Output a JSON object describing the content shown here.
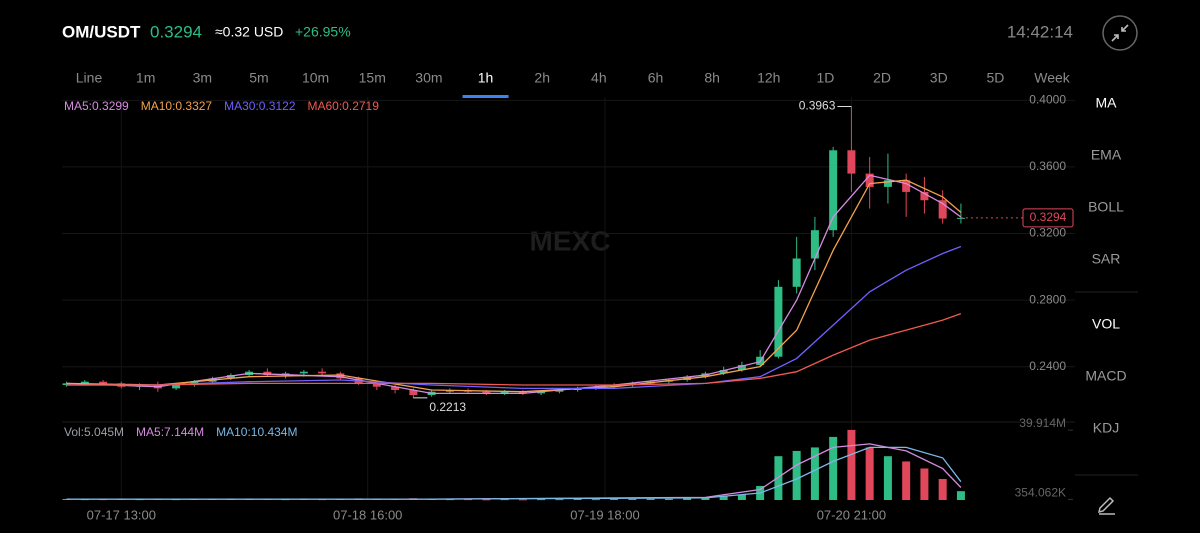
{
  "header": {
    "pair": "OM/USDT",
    "price": "0.3294",
    "usd": "≈0.32 USD",
    "change": "+26.95%",
    "time": "14:42:14"
  },
  "tabs": [
    {
      "label": "Line"
    },
    {
      "label": "1m"
    },
    {
      "label": "3m"
    },
    {
      "label": "5m"
    },
    {
      "label": "10m"
    },
    {
      "label": "15m"
    },
    {
      "label": "30m"
    },
    {
      "label": "1h",
      "selected": true
    },
    {
      "label": "2h"
    },
    {
      "label": "4h"
    },
    {
      "label": "6h"
    },
    {
      "label": "8h"
    },
    {
      "label": "12h"
    },
    {
      "label": "1D"
    },
    {
      "label": "2D"
    },
    {
      "label": "3D"
    },
    {
      "label": "5D"
    },
    {
      "label": "Week"
    }
  ],
  "indicators": [
    "MA",
    "EMA",
    "BOLL",
    "SAR"
  ],
  "sub_indicators": [
    "VOL",
    "MACD",
    "KDJ"
  ],
  "chart_data": [
    {
      "type": "candlestick",
      "watermark": "MEXC",
      "x": [
        0,
        2,
        4,
        6,
        8,
        10,
        12,
        14,
        16,
        18,
        20,
        22,
        24,
        26,
        28,
        30,
        32,
        34,
        36,
        38,
        40,
        42,
        44,
        46,
        48,
        50,
        52,
        54,
        56,
        58,
        60,
        62,
        64,
        66,
        68,
        70,
        72,
        74,
        76,
        78,
        80,
        82,
        84,
        86,
        88,
        90,
        92,
        94,
        96,
        98
      ],
      "open": [
        0.229,
        0.23,
        0.231,
        0.23,
        0.228,
        0.229,
        0.227,
        0.229,
        0.231,
        0.233,
        0.235,
        0.237,
        0.235,
        0.236,
        0.237,
        0.236,
        0.233,
        0.23,
        0.228,
        0.226,
        0.223,
        0.225,
        0.226,
        0.225,
        0.224,
        0.225,
        0.224,
        0.225,
        0.226,
        0.227,
        0.228,
        0.229,
        0.23,
        0.231,
        0.232,
        0.234,
        0.236,
        0.238,
        0.241,
        0.246,
        0.288,
        0.305,
        0.322,
        0.37,
        0.356,
        0.348,
        0.352,
        0.345,
        0.34,
        0.329
      ],
      "high": [
        0.231,
        0.232,
        0.232,
        0.231,
        0.23,
        0.231,
        0.23,
        0.232,
        0.234,
        0.236,
        0.238,
        0.239,
        0.237,
        0.238,
        0.239,
        0.237,
        0.234,
        0.231,
        0.229,
        0.227,
        0.226,
        0.227,
        0.227,
        0.226,
        0.226,
        0.226,
        0.226,
        0.227,
        0.228,
        0.229,
        0.23,
        0.231,
        0.232,
        0.233,
        0.235,
        0.237,
        0.24,
        0.243,
        0.25,
        0.292,
        0.318,
        0.33,
        0.372,
        0.3963,
        0.366,
        0.368,
        0.356,
        0.354,
        0.346,
        0.338
      ],
      "low": [
        0.228,
        0.229,
        0.229,
        0.227,
        0.226,
        0.225,
        0.226,
        0.228,
        0.23,
        0.232,
        0.234,
        0.234,
        0.233,
        0.234,
        0.235,
        0.232,
        0.229,
        0.226,
        0.224,
        0.2213,
        0.222,
        0.224,
        0.224,
        0.223,
        0.223,
        0.223,
        0.223,
        0.224,
        0.225,
        0.226,
        0.227,
        0.228,
        0.229,
        0.23,
        0.231,
        0.233,
        0.235,
        0.237,
        0.24,
        0.245,
        0.284,
        0.298,
        0.318,
        0.345,
        0.335,
        0.338,
        0.33,
        0.332,
        0.326,
        0.326
      ],
      "close": [
        0.23,
        0.231,
        0.23,
        0.228,
        0.229,
        0.227,
        0.229,
        0.231,
        0.233,
        0.235,
        0.237,
        0.235,
        0.236,
        0.237,
        0.236,
        0.233,
        0.23,
        0.228,
        0.226,
        0.223,
        0.225,
        0.226,
        0.225,
        0.224,
        0.225,
        0.224,
        0.225,
        0.226,
        0.227,
        0.228,
        0.229,
        0.23,
        0.231,
        0.232,
        0.234,
        0.236,
        0.238,
        0.241,
        0.246,
        0.288,
        0.305,
        0.322,
        0.37,
        0.356,
        0.348,
        0.352,
        0.345,
        0.34,
        0.329,
        0.3294
      ],
      "up_color": "#2ebd85",
      "down_color": "#e0475a",
      "xlim": [
        -0.5,
        110.5
      ],
      "xticks": [
        {
          "value": 6,
          "label": "07-17 13:00"
        },
        {
          "value": 33,
          "label": "07-18 16:00"
        },
        {
          "value": 59,
          "label": "07-19 18:00"
        },
        {
          "value": 86,
          "label": "07-20 21:00"
        }
      ],
      "ylim": [
        0.208,
        0.402
      ],
      "yticks": [
        {
          "value": 0.24,
          "label": "0.2400"
        },
        {
          "value": 0.28,
          "label": "0.2800"
        },
        {
          "value": 0.32,
          "label": "0.3200"
        },
        {
          "value": 0.36,
          "label": "0.3600"
        },
        {
          "value": 0.4,
          "label": "0.4000"
        }
      ],
      "grid": true,
      "high_label": 0.3963,
      "high_x": 86,
      "low_label": 0.2213,
      "low_x": 38,
      "last_price": 0.3294,
      "series": [
        {
          "name": "MA5:0.3299",
          "color": "#d68be0",
          "x": [
            0,
            10,
            20,
            30,
            40,
            50,
            60,
            70,
            76,
            80,
            84,
            88,
            92,
            96,
            98
          ],
          "values": [
            0.23,
            0.228,
            0.236,
            0.234,
            0.224,
            0.224,
            0.229,
            0.235,
            0.243,
            0.28,
            0.33,
            0.355,
            0.35,
            0.338,
            0.3299
          ]
        },
        {
          "name": "MA10:0.3327",
          "color": "#f3a24d",
          "x": [
            0,
            10,
            20,
            30,
            40,
            50,
            60,
            70,
            76,
            80,
            84,
            88,
            92,
            96,
            98
          ],
          "values": [
            0.23,
            0.229,
            0.234,
            0.235,
            0.226,
            0.225,
            0.228,
            0.234,
            0.24,
            0.262,
            0.31,
            0.35,
            0.352,
            0.342,
            0.3327
          ]
        },
        {
          "name": "MA30:0.3122",
          "color": "#7060ff",
          "x": [
            0,
            10,
            20,
            30,
            40,
            50,
            60,
            70,
            76,
            80,
            84,
            88,
            92,
            96,
            98
          ],
          "values": [
            0.229,
            0.229,
            0.231,
            0.232,
            0.229,
            0.227,
            0.227,
            0.23,
            0.234,
            0.245,
            0.265,
            0.285,
            0.298,
            0.308,
            0.3122
          ]
        },
        {
          "name": "MA60:0.2719",
          "color": "#ef5a50",
          "x": [
            0,
            10,
            20,
            30,
            40,
            50,
            60,
            70,
            76,
            80,
            84,
            88,
            92,
            96,
            98
          ],
          "values": [
            0.229,
            0.229,
            0.23,
            0.23,
            0.23,
            0.229,
            0.229,
            0.23,
            0.233,
            0.237,
            0.247,
            0.256,
            0.262,
            0.268,
            0.2719
          ]
        }
      ]
    },
    {
      "type": "bar",
      "title": "Vol:5.045M",
      "values": [
        0.6,
        0.5,
        0.5,
        0.7,
        0.5,
        0.8,
        0.5,
        0.6,
        0.6,
        0.7,
        0.8,
        0.6,
        0.5,
        0.6,
        0.5,
        0.8,
        0.9,
        0.7,
        0.6,
        1.0,
        0.7,
        0.5,
        0.5,
        0.4,
        0.5,
        0.4,
        0.5,
        0.5,
        0.6,
        0.5,
        0.6,
        0.6,
        0.7,
        0.7,
        0.9,
        1.2,
        2.0,
        3.0,
        8.0,
        25.0,
        28.0,
        30.0,
        36.0,
        40.0,
        30.0,
        25.0,
        22.0,
        18.0,
        12.0,
        5.045
      ],
      "ylim": [
        0,
        42.8
      ],
      "yticks": [
        {
          "value": 0.354062,
          "label": "354.062K"
        },
        {
          "value": 39.914,
          "label": "39.914M"
        }
      ],
      "series": [
        {
          "name": "MA5:7.144M",
          "color": "#d68be0",
          "x": [
            0,
            40,
            70,
            76,
            80,
            84,
            88,
            92,
            96,
            98
          ],
          "values": [
            0.5,
            0.5,
            1.5,
            6.0,
            20.0,
            30.0,
            32.0,
            28.0,
            18.0,
            7.144
          ]
        },
        {
          "name": "MA10:10.434M",
          "color": "#7ab8e6",
          "x": [
            0,
            40,
            70,
            76,
            80,
            84,
            88,
            92,
            96,
            98
          ],
          "values": [
            0.5,
            0.5,
            1.2,
            4.0,
            12.0,
            22.0,
            30.0,
            30.0,
            24.0,
            10.434
          ]
        }
      ]
    }
  ]
}
